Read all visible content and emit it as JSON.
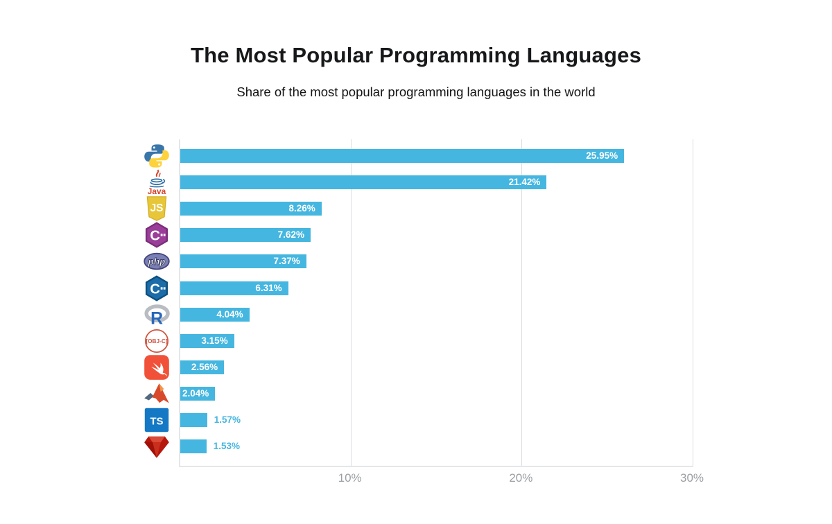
{
  "title": "The Most Popular Programming Languages",
  "subtitle": "Share of the most popular programming languages in the world",
  "chart_data": {
    "type": "bar",
    "orientation": "horizontal",
    "title": "The Most Popular Programming Languages",
    "subtitle": "Share of the most popular programming languages in the world",
    "categories": [
      "Python",
      "Java",
      "JavaScript",
      "C#",
      "PHP",
      "C++",
      "R",
      "Objective-C",
      "Swift",
      "MATLAB",
      "TypeScript",
      "Ruby"
    ],
    "icons": [
      "python-icon",
      "java-icon",
      "javascript-icon",
      "csharp-icon",
      "php-icon",
      "cpp-icon",
      "r-icon",
      "objective-c-icon",
      "swift-icon",
      "matlab-icon",
      "typescript-icon",
      "ruby-icon"
    ],
    "values": [
      25.95,
      21.42,
      8.26,
      7.62,
      7.37,
      6.31,
      4.04,
      3.15,
      2.56,
      2.04,
      1.57,
      1.53
    ],
    "labels": [
      "25.95%",
      "21.42%",
      "8.26%",
      "7.62%",
      "7.37%",
      "6.31%",
      "4.04%",
      "3.15%",
      "2.56%",
      "2.04%",
      "1.57%",
      "1.53%"
    ],
    "label_inside_threshold": 2.0,
    "xlabel": "",
    "ylabel": "",
    "xlim": [
      0,
      30
    ],
    "axis_ticks": [
      {
        "value": 10,
        "label": "10%"
      },
      {
        "value": 20,
        "label": "20%"
      },
      {
        "value": 30,
        "label": "30%"
      }
    ],
    "grid": "vertical",
    "legend": "none",
    "bar_color": "#45b6e0",
    "label_color_inside": "#ffffff",
    "label_color_outside": "#45b6e0",
    "axis_text_color": "#9b9fa3",
    "grid_color": "#dadddf"
  }
}
